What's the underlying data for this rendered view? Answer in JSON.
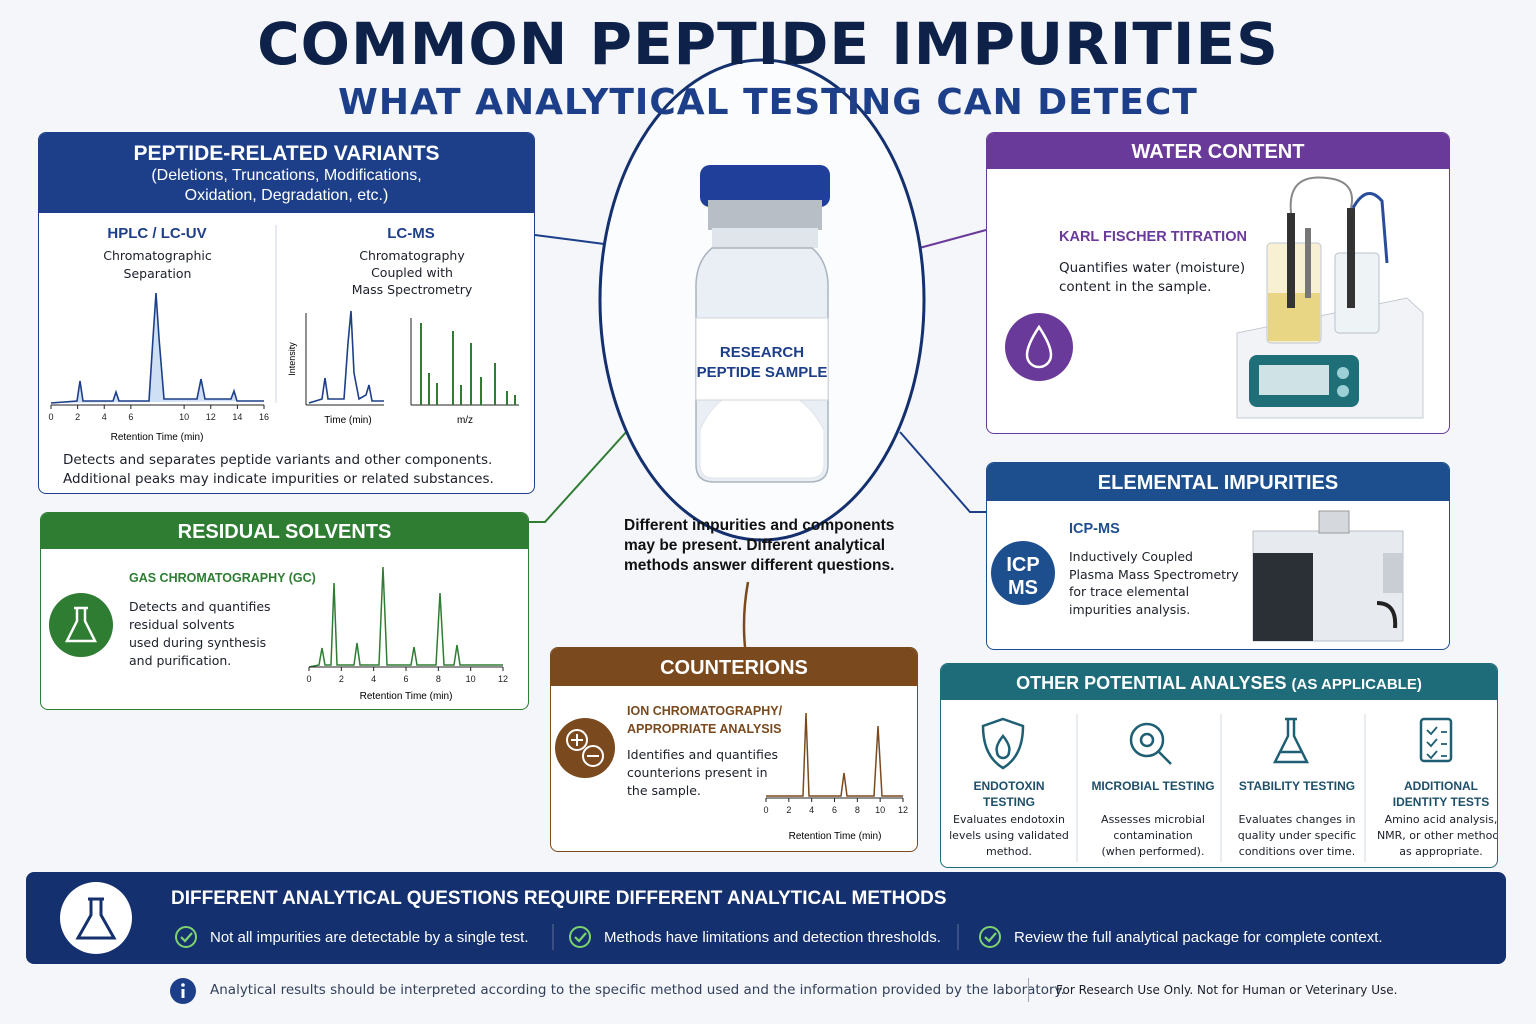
{
  "header": {
    "title": "COMMON PEPTIDE IMPURITIES",
    "subtitle": "WHAT ANALYTICAL TESTING CAN DETECT"
  },
  "variants": {
    "title": "PEPTIDE-RELATED VARIANTS",
    "subtitle": [
      "(Deletions, Truncations, Modifications,",
      "Oxidation, Degradation, etc.)"
    ],
    "hplc": {
      "name": "HPLC / LC-UV",
      "desc": [
        "Chromatographic",
        "Separation"
      ],
      "x_ticks": [
        0,
        2,
        4,
        6,
        10,
        12,
        14,
        16
      ],
      "x_label": "Retention Time (min)"
    },
    "lcms": {
      "name": "LC-MS",
      "desc": [
        "Chromatography",
        "Coupled with",
        "Mass Spectrometry"
      ],
      "y_label": "Intensity",
      "x_label_time": "Time (min)",
      "x_label_mz": "m/z"
    },
    "note": [
      "Detects and separates peptide variants and other components.",
      "Additional peaks may indicate impurities or related substances."
    ]
  },
  "solvents": {
    "title": "RESIDUAL SOLVENTS",
    "method": "GAS CHROMATOGRAPHY (GC)",
    "desc": [
      "Detects and quantifies",
      "residual solvents",
      "used during synthesis",
      "and purification."
    ],
    "x_ticks": [
      0,
      2,
      4,
      6,
      8,
      10,
      12
    ],
    "x_label": "Retention Time (min)"
  },
  "vial": {
    "label": [
      "RESEARCH",
      "PEPTIDE SAMPLE"
    ],
    "caption": [
      "Different impurities and components",
      "may be present. Different analytical",
      "methods answer different questions."
    ]
  },
  "counterions": {
    "title": "COUNTERIONS",
    "method": [
      "ION CHROMATOGRAPHY/",
      "APPROPRIATE ANALYSIS"
    ],
    "desc": [
      "Identifies and quantifies",
      "counterions present in",
      "the sample."
    ],
    "x_ticks": [
      0,
      2,
      4,
      6,
      8,
      10,
      12
    ],
    "x_label": "Retention Time (min)"
  },
  "water": {
    "title": "WATER CONTENT",
    "method": "KARL FISCHER TITRATION",
    "desc": [
      "Quantifies water (moisture)",
      "content in the sample."
    ]
  },
  "elemental": {
    "title": "ELEMENTAL IMPURITIES",
    "badge": [
      "ICP",
      "MS"
    ],
    "method": "ICP-MS",
    "desc": [
      "Inductively Coupled",
      "Plasma Mass Spectrometry",
      "for trace elemental",
      "impurities analysis."
    ]
  },
  "other": {
    "title": "OTHER POTENTIAL ANALYSES",
    "qualifier": "(AS APPLICABLE)",
    "items": [
      {
        "name": [
          "ENDOTOXIN",
          "TESTING"
        ],
        "desc": [
          "Evaluates endotoxin",
          "levels using validated",
          "method."
        ]
      },
      {
        "name": [
          "MICROBIAL TESTING"
        ],
        "desc": [
          "Assesses microbial",
          "contamination",
          "(when performed)."
        ]
      },
      {
        "name": [
          "STABILITY TESTING"
        ],
        "desc": [
          "Evaluates changes in",
          "quality under specific",
          "conditions over time."
        ]
      },
      {
        "name": [
          "ADDITIONAL",
          "IDENTITY TESTS"
        ],
        "desc": [
          "Amino acid analysis,",
          "NMR, or other methods",
          "as appropriate."
        ]
      }
    ]
  },
  "banner": {
    "title": "DIFFERENT ANALYTICAL QUESTIONS REQUIRE DIFFERENT ANALYTICAL METHODS",
    "points": [
      "Not all impurities are detectable by a single test.",
      "Methods have limitations and detection thresholds.",
      "Review the full analytical package for complete context."
    ]
  },
  "footer": {
    "note": "Analytical results should be interpreted according to the specific method used and the information provided by the laboratory.",
    "disclaimer": "For Research Use Only. Not for Human or Veterinary Use."
  }
}
